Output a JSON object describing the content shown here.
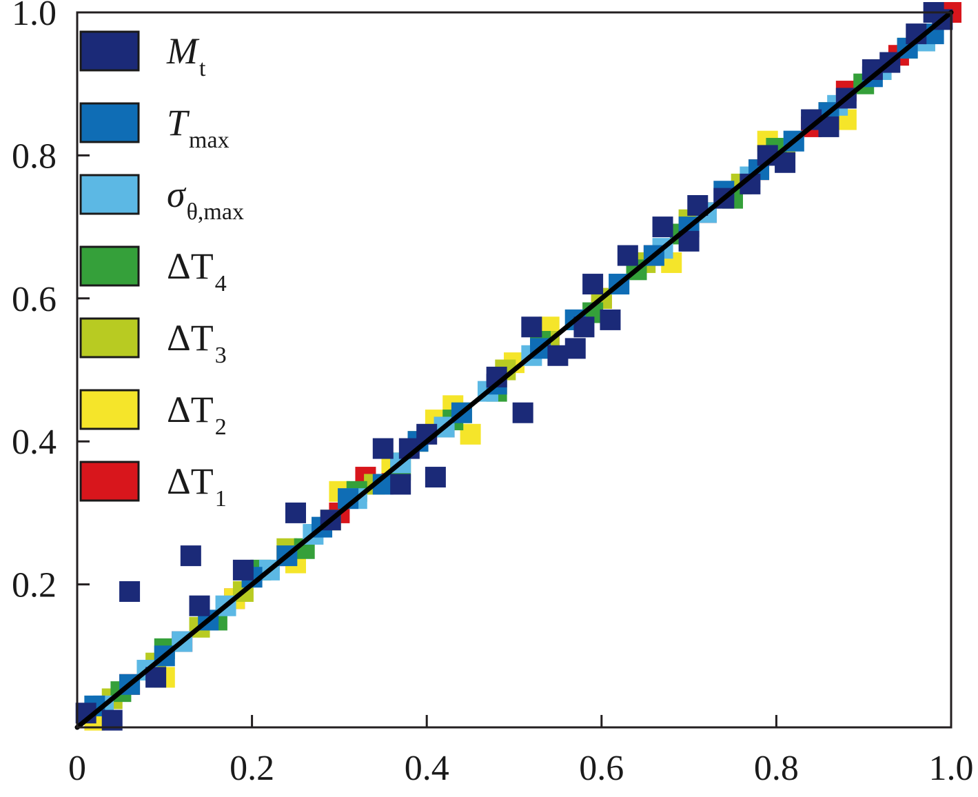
{
  "chart_data": {
    "type": "scatter",
    "title": "",
    "xlabel": "",
    "ylabel": "",
    "xlim": [
      0,
      1
    ],
    "ylim": [
      0,
      1
    ],
    "grid": false,
    "legend_position": "top-left",
    "x_ticks": [
      "0",
      "0.2",
      "0.4",
      "0.6",
      "0.8",
      "1.0"
    ],
    "y_ticks": [
      "0.2",
      "0.4",
      "0.6",
      "0.8",
      "1.0"
    ],
    "reference_line": {
      "from": [
        0,
        0
      ],
      "to": [
        1,
        1
      ],
      "color": "#000000"
    },
    "series": [
      {
        "name": "M",
        "subscript": "t",
        "italic": true,
        "color": "#1b2a78",
        "points": [
          [
            0.01,
            0.02
          ],
          [
            0.04,
            0.01
          ],
          [
            0.06,
            0.19
          ],
          [
            0.09,
            0.07
          ],
          [
            0.13,
            0.24
          ],
          [
            0.14,
            0.17
          ],
          [
            0.19,
            0.22
          ],
          [
            0.25,
            0.3
          ],
          [
            0.29,
            0.29
          ],
          [
            0.35,
            0.39
          ],
          [
            0.37,
            0.34
          ],
          [
            0.38,
            0.39
          ],
          [
            0.4,
            0.41
          ],
          [
            0.41,
            0.35
          ],
          [
            0.48,
            0.49
          ],
          [
            0.51,
            0.44
          ],
          [
            0.52,
            0.56
          ],
          [
            0.55,
            0.52
          ],
          [
            0.57,
            0.53
          ],
          [
            0.58,
            0.56
          ],
          [
            0.59,
            0.62
          ],
          [
            0.61,
            0.57
          ],
          [
            0.63,
            0.66
          ],
          [
            0.67,
            0.7
          ],
          [
            0.7,
            0.68
          ],
          [
            0.71,
            0.73
          ],
          [
            0.74,
            0.74
          ],
          [
            0.77,
            0.76
          ],
          [
            0.79,
            0.8
          ],
          [
            0.81,
            0.79
          ],
          [
            0.84,
            0.85
          ],
          [
            0.86,
            0.84
          ],
          [
            0.88,
            0.88
          ],
          [
            0.91,
            0.92
          ],
          [
            0.93,
            0.93
          ],
          [
            0.96,
            0.97
          ],
          [
            0.98,
            1.0
          ],
          [
            0.99,
            0.99
          ]
        ]
      },
      {
        "name": "T",
        "subscript": "max",
        "italic": true,
        "color": "#0f6db5",
        "points": [
          [
            0.02,
            0.03
          ],
          [
            0.06,
            0.06
          ],
          [
            0.1,
            0.1
          ],
          [
            0.15,
            0.15
          ],
          [
            0.2,
            0.21
          ],
          [
            0.24,
            0.24
          ],
          [
            0.28,
            0.28
          ],
          [
            0.31,
            0.32
          ],
          [
            0.35,
            0.34
          ],
          [
            0.39,
            0.4
          ],
          [
            0.44,
            0.44
          ],
          [
            0.48,
            0.48
          ],
          [
            0.53,
            0.53
          ],
          [
            0.57,
            0.57
          ],
          [
            0.62,
            0.62
          ],
          [
            0.66,
            0.66
          ],
          [
            0.7,
            0.7
          ],
          [
            0.74,
            0.75
          ],
          [
            0.78,
            0.78
          ],
          [
            0.82,
            0.82
          ],
          [
            0.86,
            0.86
          ],
          [
            0.91,
            0.91
          ],
          [
            0.95,
            0.95
          ],
          [
            0.98,
            0.97
          ]
        ]
      },
      {
        "name": "σ",
        "subscript": "θ,max",
        "italic": true,
        "color": "#5cb8e4",
        "points": [
          [
            0.03,
            0.03
          ],
          [
            0.08,
            0.08
          ],
          [
            0.12,
            0.12
          ],
          [
            0.17,
            0.17
          ],
          [
            0.22,
            0.22
          ],
          [
            0.27,
            0.27
          ],
          [
            0.32,
            0.32
          ],
          [
            0.37,
            0.37
          ],
          [
            0.42,
            0.42
          ],
          [
            0.47,
            0.47
          ],
          [
            0.52,
            0.52
          ],
          [
            0.57,
            0.57
          ],
          [
            0.62,
            0.62
          ],
          [
            0.67,
            0.67
          ],
          [
            0.72,
            0.72
          ],
          [
            0.77,
            0.77
          ],
          [
            0.82,
            0.82
          ],
          [
            0.87,
            0.87
          ],
          [
            0.92,
            0.92
          ],
          [
            0.97,
            0.96
          ]
        ]
      },
      {
        "name": "ΔT",
        "subscript": "4",
        "italic": false,
        "color": "#35a03a",
        "points": [
          [
            0.05,
            0.05
          ],
          [
            0.1,
            0.11
          ],
          [
            0.16,
            0.15
          ],
          [
            0.21,
            0.22
          ],
          [
            0.26,
            0.25
          ],
          [
            0.32,
            0.33
          ],
          [
            0.37,
            0.36
          ],
          [
            0.43,
            0.43
          ],
          [
            0.48,
            0.47
          ],
          [
            0.53,
            0.54
          ],
          [
            0.59,
            0.58
          ],
          [
            0.64,
            0.64
          ],
          [
            0.69,
            0.69
          ],
          [
            0.75,
            0.74
          ],
          [
            0.8,
            0.81
          ],
          [
            0.85,
            0.85
          ],
          [
            0.9,
            0.9
          ],
          [
            0.95,
            0.95
          ]
        ]
      },
      {
        "name": "ΔT",
        "subscript": "3",
        "italic": false,
        "color": "#b8cb22",
        "points": [
          [
            0.04,
            0.04
          ],
          [
            0.09,
            0.09
          ],
          [
            0.14,
            0.14
          ],
          [
            0.19,
            0.19
          ],
          [
            0.24,
            0.25
          ],
          [
            0.29,
            0.29
          ],
          [
            0.34,
            0.34
          ],
          [
            0.39,
            0.4
          ],
          [
            0.44,
            0.44
          ],
          [
            0.49,
            0.5
          ],
          [
            0.54,
            0.54
          ],
          [
            0.6,
            0.6
          ],
          [
            0.65,
            0.65
          ],
          [
            0.7,
            0.71
          ],
          [
            0.76,
            0.76
          ],
          [
            0.81,
            0.81
          ],
          [
            0.86,
            0.86
          ],
          [
            0.92,
            0.92
          ]
        ]
      },
      {
        "name": "ΔT",
        "subscript": "2",
        "italic": false,
        "color": "#f5e52a",
        "points": [
          [
            0.02,
            0.01
          ],
          [
            0.1,
            0.07
          ],
          [
            0.18,
            0.18
          ],
          [
            0.25,
            0.23
          ],
          [
            0.3,
            0.33
          ],
          [
            0.36,
            0.37
          ],
          [
            0.41,
            0.43
          ],
          [
            0.43,
            0.45
          ],
          [
            0.45,
            0.41
          ],
          [
            0.5,
            0.51
          ],
          [
            0.54,
            0.56
          ],
          [
            0.6,
            0.6
          ],
          [
            0.68,
            0.65
          ],
          [
            0.79,
            0.82
          ],
          [
            0.88,
            0.85
          ],
          [
            0.97,
            0.96
          ]
        ]
      },
      {
        "name": "ΔT",
        "subscript": "1",
        "italic": false,
        "color": "#d8161c",
        "points": [
          [
            0.06,
            0.06
          ],
          [
            0.12,
            0.12
          ],
          [
            0.18,
            0.18
          ],
          [
            0.24,
            0.24
          ],
          [
            0.3,
            0.3
          ],
          [
            0.33,
            0.35
          ],
          [
            0.36,
            0.36
          ],
          [
            0.42,
            0.42
          ],
          [
            0.48,
            0.48
          ],
          [
            0.54,
            0.54
          ],
          [
            0.6,
            0.6
          ],
          [
            0.66,
            0.66
          ],
          [
            0.72,
            0.72
          ],
          [
            0.78,
            0.78
          ],
          [
            0.84,
            0.84
          ],
          [
            0.88,
            0.89
          ],
          [
            0.94,
            0.94
          ],
          [
            1.0,
            1.0
          ]
        ]
      }
    ]
  }
}
